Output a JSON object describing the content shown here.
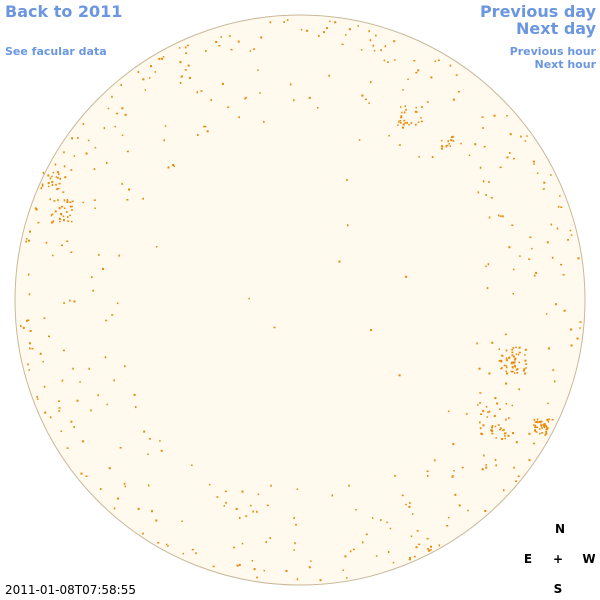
{
  "nav": {
    "back": "Back to 2011",
    "facular": "See facular data",
    "previous_day": "Previous day",
    "next_day": "Next day",
    "previous_hour": "Previous hour",
    "next_hour": "Next hour"
  },
  "timestamp": "2011-01-08T07:58:55",
  "compass": {
    "north": "N",
    "east": "E",
    "center": "+",
    "west": "W",
    "south": "S"
  }
}
